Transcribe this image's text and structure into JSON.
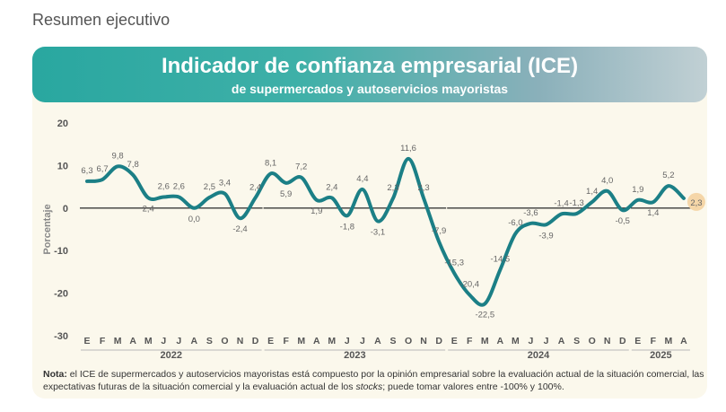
{
  "page": {
    "section_title": "Resumen ejecutivo"
  },
  "banner": {
    "title": "Indicador de confianza empresarial (ICE)",
    "subtitle": "de supermercados y autoservicios mayoristas"
  },
  "note": {
    "label": "Nota:",
    "text_before": " el ICE de supermercados y autoservicios mayoristas está compuesto por la opinión empresarial sobre la evaluación actual de la situación comercial, las expectativas futuras de la situación comercial y la evaluación actual de los ",
    "text_italic": "stocks",
    "text_after": "; puede tomar valores entre -100% y 100%."
  },
  "colors": {
    "line": "#1b7f86",
    "highlight": "#f5d6a8",
    "grid": "#cfcfcf",
    "text": "#555555"
  },
  "chart_data": {
    "type": "line",
    "ylabel": "Porcentaje",
    "ylim": [
      -30,
      20
    ],
    "yticks": [
      20,
      10,
      0,
      -10,
      -20,
      -30
    ],
    "x": [
      "E",
      "F",
      "M",
      "A",
      "M",
      "J",
      "J",
      "A",
      "S",
      "O",
      "N",
      "D",
      "E",
      "F",
      "M",
      "A",
      "M",
      "J",
      "J",
      "A",
      "S",
      "O",
      "N",
      "D",
      "E",
      "F",
      "M",
      "A",
      "M",
      "J",
      "J",
      "A",
      "S",
      "O",
      "N",
      "D",
      "E",
      "F",
      "M",
      "A"
    ],
    "years": [
      {
        "label": "2022",
        "start": 0,
        "end": 11
      },
      {
        "label": "2023",
        "start": 12,
        "end": 23
      },
      {
        "label": "2024",
        "start": 24,
        "end": 35
      },
      {
        "label": "2025",
        "start": 36,
        "end": 39
      }
    ],
    "values": [
      6.3,
      6.7,
      9.8,
      7.8,
      2.4,
      2.6,
      2.6,
      0.0,
      2.5,
      3.4,
      -2.4,
      2.4,
      8.1,
      5.9,
      7.2,
      1.9,
      2.4,
      -1.8,
      4.4,
      -3.1,
      2.3,
      11.6,
      2.3,
      -7.9,
      -15.3,
      -20.4,
      -22.5,
      -14.5,
      -6.0,
      -3.6,
      -3.9,
      -1.4,
      -1.3,
      1.4,
      4.0,
      -0.5,
      1.9,
      1.4,
      5.2,
      2.3
    ],
    "data_labels": [
      "6,3",
      "6,7",
      "9,8",
      "7,8",
      "2,4",
      "2,6",
      "2,6",
      "0,0",
      "2,5",
      "3,4",
      "-2,4",
      "2,4",
      "8,1",
      "5,9",
      "7,2",
      "1,9",
      "2,4",
      "-1,8",
      "4,4",
      "-3,1",
      "2,3",
      "11,6",
      "2,3",
      "-7,9",
      "-15,3",
      "-20,4",
      "-22,5",
      "-14,5",
      "-6,0",
      "-3,6",
      "-3,9",
      "-1,4",
      "-1,3",
      "1,4",
      "4,0",
      "-0,5",
      "1,9",
      "1,4",
      "5,2",
      "2,3"
    ],
    "highlighted_point": 39,
    "grid": false,
    "zero_line": true
  }
}
